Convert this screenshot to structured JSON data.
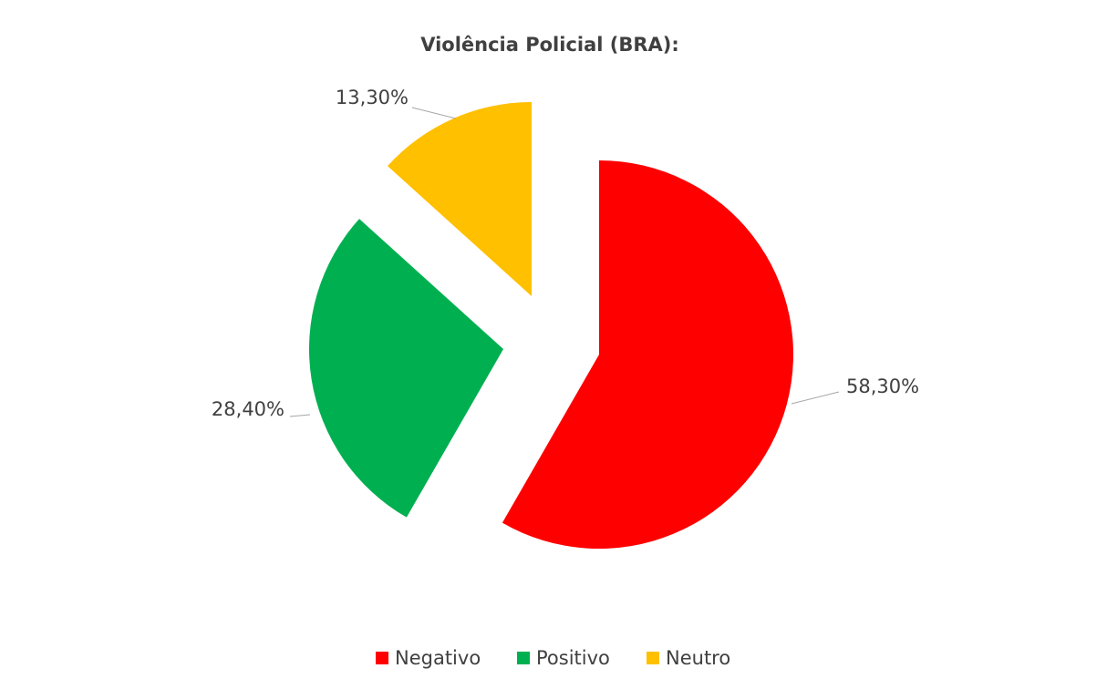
{
  "chart_data": {
    "type": "pie",
    "title": "Violência Policial (BRA):",
    "categories": [
      "Negativo",
      "Positivo",
      "Neutro"
    ],
    "values": [
      58.3,
      28.4,
      13.3
    ],
    "value_labels": [
      "58,30%",
      "28,40%",
      "13,30%"
    ],
    "colors": [
      "#ff0000",
      "#00b050",
      "#ffc000"
    ],
    "legend": "bottom"
  }
}
